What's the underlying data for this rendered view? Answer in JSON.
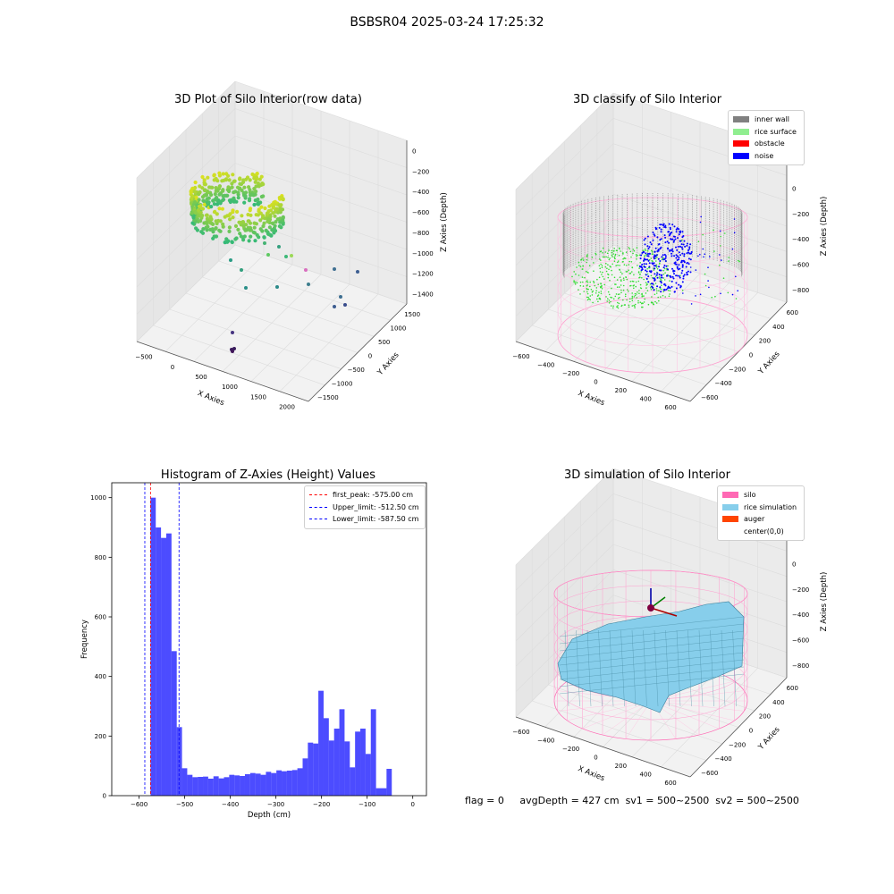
{
  "figure": {
    "suptitle": "BSBSR04 2025-03-24 17:25:32"
  },
  "panels": {
    "raw": {
      "title": "3D Plot of Silo Interior(row data)",
      "xlabel": "X Axies",
      "ylabel": "Y Axies",
      "zlabel": "Z Axies (Depth)",
      "xticks": [
        "−500",
        "0",
        "500",
        "1000",
        "1500",
        "2000"
      ],
      "yticks": [
        "−1500",
        "−1000",
        "−500",
        "0",
        "500",
        "1000",
        "1500"
      ],
      "zticks": [
        "0",
        "−200",
        "−400",
        "−600",
        "−800",
        "−1000",
        "−1200",
        "−1400"
      ]
    },
    "classify": {
      "title": "3D classify of Silo Interior",
      "xlabel": "X Axies",
      "ylabel": "Y Axies",
      "zlabel": "Z Axies (Depth)",
      "xticks": [
        "−600",
        "−400",
        "−200",
        "0",
        "200",
        "400",
        "600"
      ],
      "yticks": [
        "−600",
        "−400",
        "−200",
        "0",
        "200",
        "400",
        "600"
      ],
      "zticks": [
        "200",
        "0",
        "−200",
        "−400",
        "−600",
        "−800"
      ],
      "legend": [
        {
          "label": "inner wall",
          "color": "#808080"
        },
        {
          "label": "rice surface",
          "color": "#90ee90"
        },
        {
          "label": "obstacle",
          "color": "#ff0000"
        },
        {
          "label": "noise",
          "color": "#0000ff"
        }
      ]
    },
    "simulation": {
      "title": "3D simulation of Silo Interior",
      "xlabel": "X Axies",
      "ylabel": "Y Axies",
      "zlabel": "Z Axies (Depth)",
      "xticks": [
        "−600",
        "−400",
        "−200",
        "0",
        "200",
        "400",
        "600"
      ],
      "yticks": [
        "−600",
        "−400",
        "−200",
        "0",
        "200",
        "400",
        "600"
      ],
      "zticks": [
        "200",
        "0",
        "−200",
        "−400",
        "−600",
        "−800"
      ],
      "legend": [
        {
          "label": "silo",
          "color": "#ff69b4"
        },
        {
          "label": "rice simulation",
          "color": "#87ceeb"
        },
        {
          "label": "auger",
          "color": "#ff4500"
        },
        {
          "label": "center(0,0)",
          "color": ""
        }
      ]
    }
  },
  "chart_data": [
    {
      "type": "bar",
      "title": "Histogram of Z-Axies (Height) Values",
      "xlabel": "Depth (cm)",
      "ylabel": "Frequency",
      "xlim": [
        -660,
        30
      ],
      "ylim": [
        0,
        1050
      ],
      "xticks": [
        -600,
        -500,
        -400,
        -300,
        -200,
        -100,
        0
      ],
      "yticks": [
        0,
        200,
        400,
        600,
        800,
        1000
      ],
      "tick_labels_x": [
        "−600",
        "−500",
        "−400",
        "−300",
        "−200",
        "−100",
        "0"
      ],
      "tick_labels_y": [
        "0",
        "200",
        "400",
        "600",
        "800",
        "1000"
      ],
      "bar_color": "#0000ff",
      "bin_start": -575,
      "bin_width": 11.5,
      "values": [
        1000,
        900,
        865,
        880,
        485,
        230,
        92,
        70,
        62,
        63,
        64,
        57,
        65,
        58,
        62,
        70,
        68,
        66,
        72,
        76,
        74,
        70,
        80,
        76,
        85,
        82,
        84,
        86,
        92,
        125,
        178,
        175,
        352,
        260,
        185,
        225,
        290,
        182,
        95,
        215,
        225,
        140,
        290,
        25,
        25,
        90
      ],
      "vlines": [
        {
          "value": -575.0,
          "color": "#ff0000",
          "label": "first_peak: -575.00 cm"
        },
        {
          "value": -512.5,
          "color": "#0000ff",
          "label": "Upper_limit: -512.50 cm"
        },
        {
          "value": -587.5,
          "color": "#0000ff",
          "label": "Lower_limit: -587.50 cm"
        }
      ]
    }
  ],
  "status": {
    "flag": "flag = 0",
    "avg_depth": "avgDepth = 427 cm",
    "sv1": "sv1 = 500~2500",
    "sv2": "sv2 = 500~2500"
  }
}
